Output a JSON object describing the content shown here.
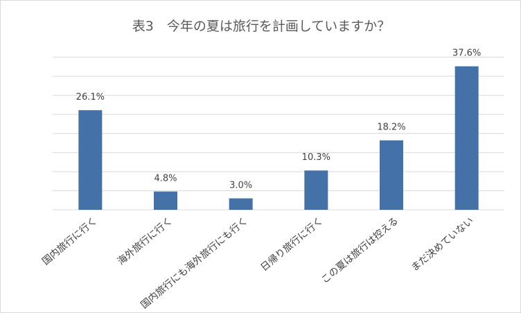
{
  "chart_data": {
    "type": "bar",
    "title": "表3　今年の夏は旅行を計画していますか？",
    "categories": [
      "国内旅行に行く",
      "海外旅行に行く",
      "国内旅行にも海外旅行にも行く",
      "日帰り旅行に行く",
      "この夏は旅行は控える",
      "まだ決めていない"
    ],
    "values": [
      26.1,
      4.8,
      3.0,
      10.3,
      18.2,
      37.6
    ],
    "value_labels": [
      "26.1%",
      "4.8%",
      "3.0%",
      "10.3%",
      "18.2%",
      "37.6%"
    ],
    "value_unit": "%",
    "xlabel": "",
    "ylabel": "",
    "ylim": [
      0,
      40
    ],
    "y_axis_labels_shown": false,
    "grid": true,
    "legend": "none",
    "colors": {
      "bar": "#4472a8",
      "grid": "#d9d9d9",
      "text": "#404040",
      "title": "#595959"
    }
  }
}
